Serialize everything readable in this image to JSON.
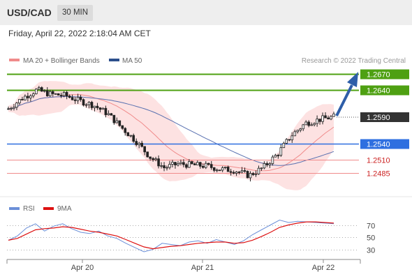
{
  "header": {
    "symbol": "USD/CAD",
    "timeframe": "30 MIN",
    "datetime": "Friday, April 22, 2022 2:18:04 AM CET"
  },
  "legend": {
    "ma20_label": "MA 20 + Bollinger Bands",
    "ma50_label": "MA 50",
    "copyright": "Research © 2022 Trading Central"
  },
  "rsi_legend": {
    "rsi_label": "RSI",
    "ma_label": "9MA"
  },
  "colors": {
    "resistance": "#4ea012",
    "support": "#2e6fe0",
    "minor_support": "#f08b8b",
    "minor_text": "#cc2222",
    "current_price_box": "#333333",
    "bollinger_fill": "#fde2e2",
    "ma20": "#f08b8b",
    "ma50": "#5870b0",
    "arrow": "#2e5ea8",
    "candle": "#222222",
    "rsi_line": "#6b8fd8",
    "rsi_ma": "#dd1111"
  },
  "chart_data": {
    "type": "candlestick",
    "price_range": [
      2.0,
      11.6
    ],
    "price_tick_labels": [],
    "current_price": "1.2590",
    "levels": [
      {
        "value": 1.267,
        "label": "1.2670",
        "kind": "resistance"
      },
      {
        "value": 1.264,
        "label": "1.2640",
        "kind": "resistance"
      },
      {
        "value": 1.254,
        "label": "1.2540",
        "kind": "support"
      },
      {
        "value": 1.251,
        "label": "1.2510",
        "kind": "minor"
      },
      {
        "value": 1.2485,
        "label": "1.2485",
        "kind": "minor"
      }
    ],
    "x_labels": [
      "Apr 20",
      "Apr 21",
      "Apr 22"
    ],
    "price_series": [
      1.2605,
      1.2625,
      1.264,
      1.2632,
      1.263,
      1.262,
      1.2612,
      1.2596,
      1.257,
      1.2545,
      1.2515,
      1.2495,
      1.2502,
      1.25,
      1.2498,
      1.2492,
      1.249,
      1.248,
      1.2495,
      1.252,
      1.2555,
      1.2578,
      1.2585,
      1.259
    ],
    "rsi": {
      "ticks": [
        70,
        50,
        30
      ],
      "range": [
        10,
        90
      ],
      "values": [
        45,
        52,
        65,
        72,
        60,
        68,
        72,
        64,
        58,
        56,
        60,
        52,
        48,
        40,
        33,
        26,
        30,
        40,
        38,
        36,
        42,
        44,
        40,
        46,
        42,
        38,
        44,
        54,
        62,
        70,
        78,
        74,
        76,
        75,
        74,
        73,
        72
      ],
      "ma_values": [
        45,
        48,
        55,
        62,
        64,
        65,
        67,
        66,
        63,
        60,
        58,
        55,
        52,
        46,
        40,
        34,
        31,
        33,
        35,
        36,
        38,
        40,
        41,
        42,
        42,
        40,
        41,
        45,
        51,
        58,
        66,
        70,
        73,
        75,
        75,
        74,
        73
      ]
    }
  }
}
